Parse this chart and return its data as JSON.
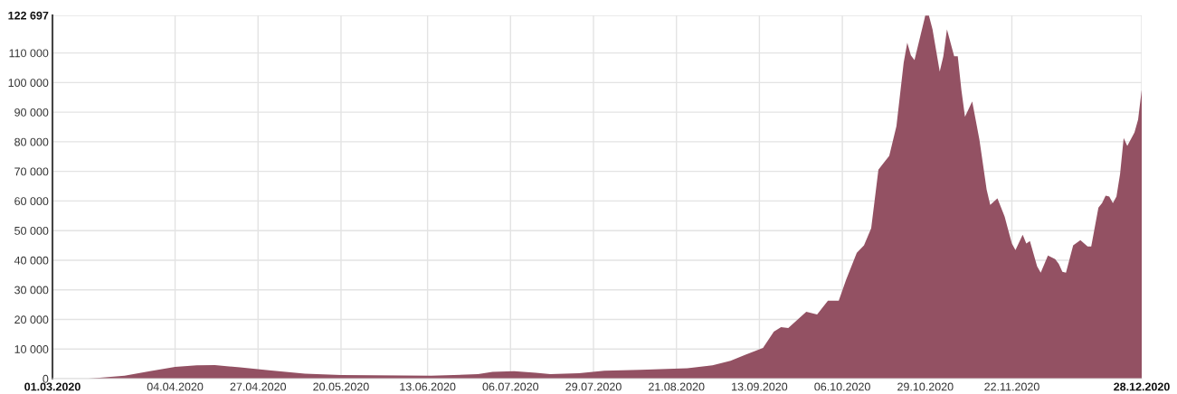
{
  "chart_data": {
    "type": "area",
    "color": "#935163",
    "grid": true,
    "x": [
      "2020-03-01",
      "2020-03-11",
      "2020-03-21",
      "2020-03-28",
      "2020-04-04",
      "2020-04-10",
      "2020-04-15",
      "2020-04-22",
      "2020-04-30",
      "2020-05-10",
      "2020-05-20",
      "2020-06-14",
      "2020-06-27",
      "2020-07-01",
      "2020-07-07",
      "2020-07-13",
      "2020-07-17",
      "2020-07-25",
      "2020-08-01",
      "2020-08-11",
      "2020-08-24",
      "2020-08-31",
      "2020-09-05",
      "2020-09-09",
      "2020-09-14",
      "2020-09-17",
      "2020-09-19",
      "2020-09-21",
      "2020-09-26",
      "2020-09-29",
      "2020-10-02",
      "2020-10-05",
      "2020-10-07",
      "2020-10-10",
      "2020-10-12",
      "2020-10-14",
      "2020-10-16",
      "2020-10-18",
      "2020-10-19",
      "2020-10-21",
      "2020-10-23",
      "2020-10-24",
      "2020-10-25",
      "2020-10-26",
      "2020-10-29",
      "2020-10-30",
      "2020-10-31",
      "2020-11-02",
      "2020-11-03",
      "2020-11-04",
      "2020-11-06",
      "2020-11-07",
      "2020-11-08",
      "2020-11-09",
      "2020-11-11",
      "2020-11-13",
      "2020-11-15",
      "2020-11-16",
      "2020-11-18",
      "2020-11-20",
      "2020-11-22",
      "2020-11-23",
      "2020-11-25",
      "2020-11-26",
      "2020-11-27",
      "2020-11-29",
      "2020-11-30",
      "2020-12-02",
      "2020-12-04",
      "2020-12-05",
      "2020-12-06",
      "2020-12-07",
      "2020-12-09",
      "2020-12-11",
      "2020-12-13",
      "2020-12-14",
      "2020-12-16",
      "2020-12-17",
      "2020-12-18",
      "2020-12-19",
      "2020-12-20",
      "2020-12-21",
      "2020-12-22",
      "2020-12-23",
      "2020-12-24",
      "2020-12-26",
      "2020-12-27",
      "2020-12-28"
    ],
    "values": [
      0,
      0,
      1000,
      2500,
      4000,
      4500,
      4600,
      3800,
      2800,
      1700,
      1200,
      1000,
      1500,
      2300,
      2500,
      2000,
      1500,
      1800,
      2700,
      3000,
      3500,
      4500,
      6000,
      8000,
      10400,
      15900,
      17400,
      17100,
      22600,
      21700,
      26300,
      26300,
      33300,
      42500,
      45000,
      50800,
      70600,
      73700,
      75200,
      85300,
      106700,
      113500,
      109200,
      107600,
      122600,
      122600,
      118000,
      103700,
      108900,
      118000,
      108900,
      108900,
      97500,
      88400,
      93600,
      80700,
      63900,
      58700,
      60900,
      54700,
      45600,
      43400,
      48600,
      45600,
      46500,
      37900,
      35800,
      41600,
      40400,
      38800,
      36100,
      35800,
      45000,
      46800,
      44600,
      44600,
      57800,
      59300,
      61800,
      61500,
      59300,
      61500,
      69100,
      81300,
      78600,
      83200,
      87500,
      97600
    ],
    "xlim": [
      "2020-03-01",
      "2020-12-28"
    ],
    "xticks": [
      {
        "value": "2020-03-01",
        "label": "01.03.2020"
      },
      {
        "value": "2020-04-04",
        "label": "04.04.2020"
      },
      {
        "value": "2020-04-27",
        "label": "27.04.2020"
      },
      {
        "value": "2020-05-20",
        "label": "20.05.2020"
      },
      {
        "value": "2020-06-13",
        "label": "13.06.2020"
      },
      {
        "value": "2020-07-06",
        "label": "06.07.2020"
      },
      {
        "value": "2020-07-29",
        "label": "29.07.2020"
      },
      {
        "value": "2020-08-21",
        "label": "21.08.2020"
      },
      {
        "value": "2020-09-13",
        "label": "13.09.2020"
      },
      {
        "value": "2020-10-06",
        "label": "06.10.2020"
      },
      {
        "value": "2020-10-29",
        "label": "29.10.2020"
      },
      {
        "value": "2020-11-22",
        "label": "22.11.2020"
      },
      {
        "value": "2020-12-28",
        "label": "28.12.2020"
      }
    ],
    "ylim": [
      0,
      122697
    ],
    "yticks": [
      0,
      {
        "value": 10000,
        "label": "10 000"
      },
      {
        "value": 20000,
        "label": "20 000"
      },
      {
        "value": 30000,
        "label": "30 000"
      },
      {
        "value": 40000,
        "label": "40 000"
      },
      {
        "value": 50000,
        "label": "50 000"
      },
      {
        "value": 60000,
        "label": "60 000"
      },
      {
        "value": 70000,
        "label": "70 000"
      },
      {
        "value": 80000,
        "label": "80 000"
      },
      {
        "value": 90000,
        "label": "90 000"
      },
      {
        "value": 100000,
        "label": "100 000"
      },
      {
        "value": 110000,
        "label": "110 000"
      },
      {
        "value": 122697,
        "label": "122 697"
      }
    ]
  }
}
